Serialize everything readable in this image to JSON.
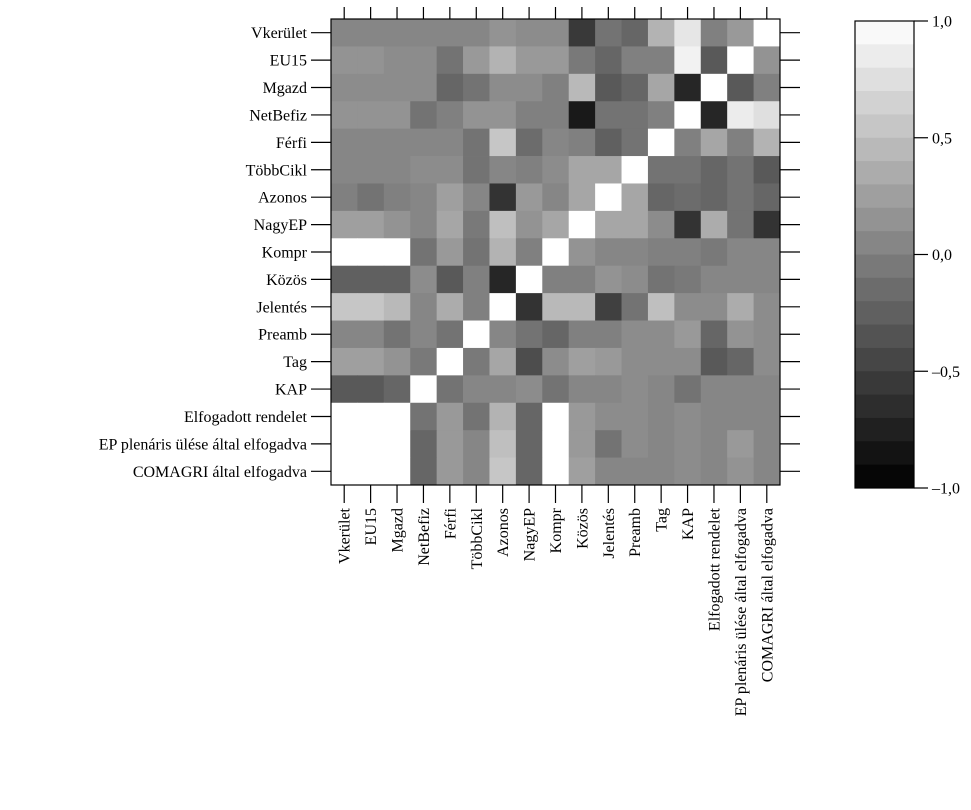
{
  "chart_data": {
    "type": "heatmap",
    "title": "",
    "xlabel": "",
    "ylabel": "",
    "row_labels": [
      "Vkerület",
      "EU15",
      "Mgazd",
      "NetBefiz",
      "Férfi",
      "TöbbCikl",
      "Azonos",
      "NagyEP",
      "Kompr",
      "Közös",
      "Jelentés",
      "Preamb",
      "Tag",
      "KAP",
      "Elfogadott rendelet",
      "EP plenáris ülése által elfogadva",
      "COMAGRI által elfogadva"
    ],
    "column_labels": [
      "Vkerület",
      "EU15",
      "Mgazd",
      "NetBefiz",
      "Férfi",
      "TöbbCikl",
      "Azonos",
      "NagyEP",
      "Kompr",
      "Közös",
      "Jelentés",
      "Preamb",
      "Tag",
      "KAP",
      "Elfogadott rendelet",
      "EP plenáris ülése által elfogadva",
      "COMAGRI által elfogadva"
    ],
    "values": [
      [
        0.05,
        0.05,
        0.05,
        0.05,
        0.05,
        0.05,
        0.15,
        0.1,
        0.1,
        -0.55,
        -0.1,
        -0.2,
        0.4,
        0.8,
        0.0,
        0.2,
        1.0
      ],
      [
        0.15,
        0.15,
        0.1,
        0.1,
        -0.1,
        0.2,
        0.4,
        0.2,
        0.2,
        -0.05,
        -0.2,
        0.0,
        0.0,
        0.9,
        -0.3,
        1.0,
        0.15
      ],
      [
        0.1,
        0.1,
        0.1,
        0.1,
        -0.2,
        -0.1,
        0.1,
        0.1,
        0.0,
        0.45,
        -0.3,
        -0.2,
        0.3,
        -0.7,
        1.0,
        -0.3,
        0.0
      ],
      [
        0.15,
        0.15,
        0.15,
        -0.1,
        0.0,
        0.15,
        0.15,
        0.0,
        0.0,
        -0.8,
        -0.1,
        -0.1,
        0.0,
        1.0,
        -0.7,
        0.85,
        0.75
      ],
      [
        0.05,
        0.05,
        0.05,
        0.05,
        0.05,
        -0.1,
        0.55,
        -0.15,
        0.05,
        0.0,
        -0.25,
        -0.1,
        1.0,
        0.0,
        0.3,
        0.0,
        0.4
      ],
      [
        0.05,
        0.05,
        0.05,
        0.1,
        0.1,
        -0.1,
        0.05,
        0.0,
        0.1,
        0.3,
        0.3,
        1.0,
        -0.1,
        -0.1,
        -0.2,
        -0.1,
        -0.3
      ],
      [
        0.0,
        -0.1,
        0.0,
        0.05,
        0.25,
        0.05,
        -0.6,
        0.2,
        0.05,
        0.3,
        1.0,
        0.3,
        -0.2,
        -0.15,
        -0.2,
        -0.1,
        -0.2
      ],
      [
        0.25,
        0.25,
        0.15,
        0.05,
        0.3,
        -0.05,
        0.5,
        0.15,
        0.3,
        1.0,
        0.3,
        0.3,
        0.1,
        -0.6,
        0.35,
        -0.1,
        -0.6
      ],
      [
        1.0,
        1.0,
        1.0,
        -0.1,
        0.2,
        -0.1,
        0.4,
        0.0,
        1.0,
        0.15,
        0.05,
        0.05,
        0.0,
        0.0,
        -0.05,
        0.05,
        0.05
      ],
      [
        -0.25,
        -0.25,
        -0.25,
        0.1,
        -0.3,
        0.0,
        -0.7,
        1.0,
        0.0,
        0.0,
        0.15,
        0.1,
        -0.1,
        -0.05,
        0.05,
        0.05,
        0.05
      ],
      [
        0.55,
        0.55,
        0.45,
        0.05,
        0.35,
        0.0,
        1.0,
        -0.6,
        0.45,
        0.45,
        -0.5,
        -0.1,
        0.5,
        0.1,
        0.1,
        0.35,
        0.1
      ],
      [
        0.05,
        0.05,
        -0.1,
        0.05,
        -0.1,
        1.0,
        0.05,
        -0.1,
        -0.2,
        0.0,
        0.0,
        0.1,
        0.1,
        0.2,
        -0.2,
        0.15,
        0.1
      ],
      [
        0.25,
        0.25,
        0.15,
        -0.05,
        1.0,
        -0.05,
        0.3,
        -0.4,
        0.1,
        0.25,
        0.2,
        0.1,
        0.1,
        0.1,
        -0.3,
        -0.2,
        0.1
      ],
      [
        -0.3,
        -0.3,
        -0.2,
        1.0,
        -0.1,
        0.05,
        0.05,
        0.1,
        -0.1,
        0.05,
        0.05,
        0.1,
        0.05,
        -0.1,
        0.05,
        0.05,
        0.05
      ],
      [
        1.0,
        1.0,
        1.0,
        -0.1,
        0.2,
        -0.1,
        0.4,
        -0.2,
        1.0,
        0.2,
        0.1,
        0.1,
        0.05,
        0.1,
        0.05,
        0.05,
        0.05
      ],
      [
        1.0,
        1.0,
        1.0,
        -0.2,
        0.2,
        0.05,
        0.5,
        -0.2,
        1.0,
        0.2,
        -0.1,
        0.1,
        0.05,
        0.1,
        0.05,
        0.2,
        0.05
      ],
      [
        1.0,
        1.0,
        1.0,
        -0.2,
        0.2,
        0.05,
        0.55,
        -0.2,
        1.0,
        0.25,
        0.05,
        0.05,
        0.05,
        0.1,
        0.05,
        0.15,
        0.05
      ]
    ],
    "colorbar": {
      "range": [
        -1.0,
        1.0
      ],
      "steps": 20,
      "tick_values": [
        1.0,
        0.5,
        0.0,
        -0.5,
        -1.0
      ],
      "tick_labels": [
        "1,0",
        "0,5",
        "0,0",
        "–0,5",
        "–1,0"
      ]
    },
    "colormap": {
      "low": "#000000",
      "high": "#ffffff"
    }
  }
}
